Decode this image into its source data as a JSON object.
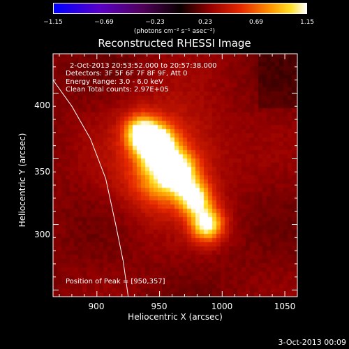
{
  "chart_data": {
    "type": "heatmap",
    "title": "Reconstructed RHESSI Image",
    "xlabel": "Heliocentric X (arcsec)",
    "ylabel": "Heliocentric Y (arcsec)",
    "xlim": [
      865,
      1060
    ],
    "ylim": [
      245,
      430
    ],
    "x_ticks": [
      "900",
      "950",
      "1000",
      "1050"
    ],
    "y_ticks": [
      "300",
      "350",
      "400"
    ],
    "colorbar": {
      "ticks": [
        "−1.15",
        "−0.69",
        "−0.23",
        "0.23",
        "0.69",
        "1.15"
      ],
      "units": "(photons cm⁻² s⁻¹ asec⁻²)",
      "min": -1.15,
      "max": 1.15
    },
    "annotations": [
      "2-Oct-2013 20:53:52.000 to 20:57:38.000",
      "Detectors: 3F 5F 6F 7F 8F 9F, Att 0",
      "Energy Range: 3.0 - 6.0 keV",
      "Clean    Total counts: 2.97E+05"
    ],
    "peak_label": "Position of Peak = [950,357]",
    "peak": [
      950,
      357
    ],
    "sources": [
      {
        "x": 948,
        "y": 360,
        "sigma": 10,
        "amp": 1.0
      },
      {
        "x": 935,
        "y": 370,
        "sigma": 9,
        "amp": 0.7
      },
      {
        "x": 965,
        "y": 340,
        "sigma": 10,
        "amp": 0.72
      },
      {
        "x": 978,
        "y": 320,
        "sigma": 9,
        "amp": 0.7
      },
      {
        "x": 988,
        "y": 300,
        "sigma": 9,
        "amp": 0.78
      },
      {
        "x": 950,
        "y": 335,
        "sigma": 14,
        "amp": 0.35
      },
      {
        "x": 955,
        "y": 350,
        "sigma": 30,
        "amp": 0.3
      }
    ],
    "limb_curve": [
      [
        865,
        410
      ],
      [
        880,
        390
      ],
      [
        895,
        365
      ],
      [
        907,
        335
      ],
      [
        915,
        300
      ],
      [
        921,
        272
      ],
      [
        925,
        245
      ]
    ]
  },
  "footer": {
    "date": "3-Oct-2013 00:09"
  }
}
